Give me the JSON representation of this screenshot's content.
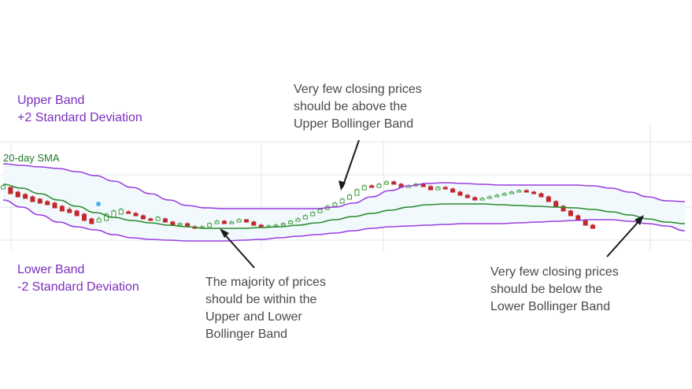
{
  "chart_data": {
    "type": "candlestick",
    "indicator": "Bollinger Bands",
    "labels": {
      "upper_band": [
        "Upper Band",
        "+2 Standard Deviation"
      ],
      "lower_band": [
        "Lower Band",
        "-2 Standard Deviation"
      ],
      "sma": "20-day SMA"
    },
    "annotations": [
      {
        "id": "above",
        "lines": [
          "Very few closing prices",
          "should be above the",
          "Upper Bollinger Band"
        ]
      },
      {
        "id": "within",
        "lines": [
          "The majority of prices",
          "should be within the",
          "Upper and Lower",
          "Bollinger Band"
        ]
      },
      {
        "id": "below",
        "lines": [
          "Very few closing prices",
          "should be below the",
          "Lower Bollinger Band"
        ]
      }
    ],
    "colors": {
      "upper_band": "#9b3fe0",
      "lower_band": "#9b3fe0",
      "sma": "#2b8a2b",
      "band_fill": "#f1f9fc",
      "up_candle": "#3c9a3c",
      "down_candle": "#c0282d",
      "grid": "#dfe6ea",
      "arrow": "#1a1a1a",
      "marker": "#4ab4e6"
    },
    "grid": true,
    "ylim": [
      0,
      100
    ],
    "upper_band": [
      [
        0,
        88
      ],
      [
        5,
        86
      ],
      [
        10,
        84
      ],
      [
        15,
        82
      ],
      [
        20,
        78
      ],
      [
        25,
        73
      ],
      [
        30,
        66
      ],
      [
        35,
        58
      ],
      [
        40,
        50
      ],
      [
        45,
        42
      ],
      [
        50,
        35
      ],
      [
        55,
        32
      ],
      [
        60,
        31
      ],
      [
        65,
        31
      ],
      [
        70,
        31
      ],
      [
        75,
        31
      ],
      [
        80,
        31
      ],
      [
        85,
        31
      ],
      [
        90,
        33
      ],
      [
        95,
        38
      ],
      [
        100,
        46
      ],
      [
        105,
        54
      ],
      [
        110,
        60
      ],
      [
        115,
        63
      ],
      [
        120,
        64
      ],
      [
        125,
        63
      ],
      [
        130,
        62
      ],
      [
        135,
        61
      ],
      [
        140,
        61
      ],
      [
        145,
        61
      ],
      [
        150,
        61
      ],
      [
        155,
        61
      ],
      [
        160,
        60
      ],
      [
        165,
        57
      ],
      [
        170,
        52
      ],
      [
        175,
        46
      ],
      [
        180,
        41
      ],
      [
        185,
        40
      ]
    ],
    "sma": [
      [
        0,
        62
      ],
      [
        5,
        57
      ],
      [
        10,
        50
      ],
      [
        15,
        42
      ],
      [
        20,
        34
      ],
      [
        25,
        26
      ],
      [
        30,
        20
      ],
      [
        35,
        16
      ],
      [
        40,
        13
      ],
      [
        45,
        10
      ],
      [
        50,
        8
      ],
      [
        55,
        6
      ],
      [
        60,
        6
      ],
      [
        65,
        6
      ],
      [
        70,
        7
      ],
      [
        75,
        8
      ],
      [
        80,
        10
      ],
      [
        85,
        13
      ],
      [
        90,
        17
      ],
      [
        95,
        21
      ],
      [
        100,
        25
      ],
      [
        105,
        29
      ],
      [
        110,
        33
      ],
      [
        115,
        36
      ],
      [
        120,
        37
      ],
      [
        125,
        37
      ],
      [
        130,
        37
      ],
      [
        135,
        36
      ],
      [
        140,
        35
      ],
      [
        145,
        34
      ],
      [
        150,
        33
      ],
      [
        155,
        32
      ],
      [
        160,
        30
      ],
      [
        165,
        27
      ],
      [
        170,
        23
      ],
      [
        175,
        18
      ],
      [
        180,
        14
      ],
      [
        185,
        12
      ]
    ],
    "lower_band": [
      [
        0,
        42
      ],
      [
        5,
        33
      ],
      [
        10,
        23
      ],
      [
        15,
        14
      ],
      [
        20,
        8
      ],
      [
        25,
        4
      ],
      [
        30,
        -2
      ],
      [
        35,
        -6
      ],
      [
        40,
        -8
      ],
      [
        45,
        -9
      ],
      [
        50,
        -10
      ],
      [
        55,
        -10
      ],
      [
        60,
        -10
      ],
      [
        65,
        -9
      ],
      [
        70,
        -8
      ],
      [
        75,
        -6
      ],
      [
        80,
        -4
      ],
      [
        85,
        -2
      ],
      [
        90,
        0
      ],
      [
        95,
        3
      ],
      [
        100,
        6
      ],
      [
        105,
        8
      ],
      [
        110,
        9
      ],
      [
        115,
        10
      ],
      [
        120,
        11
      ],
      [
        125,
        12
      ],
      [
        130,
        12
      ],
      [
        135,
        12
      ],
      [
        140,
        13
      ],
      [
        145,
        14
      ],
      [
        150,
        15
      ],
      [
        155,
        16
      ],
      [
        160,
        17
      ],
      [
        165,
        17
      ],
      [
        170,
        15
      ],
      [
        175,
        12
      ],
      [
        180,
        9
      ],
      [
        185,
        3
      ]
    ],
    "candles": [
      [
        0,
        56,
        60,
        58,
        62
      ],
      [
        2,
        58,
        50,
        52,
        59
      ],
      [
        4,
        52,
        46,
        49,
        54
      ],
      [
        6,
        49,
        44,
        46,
        51
      ],
      [
        8,
        46,
        40,
        42,
        48
      ],
      [
        10,
        43,
        38,
        40,
        45
      ],
      [
        12,
        40,
        36,
        38,
        42
      ],
      [
        14,
        38,
        32,
        34,
        40
      ],
      [
        16,
        34,
        28,
        30,
        36
      ],
      [
        18,
        30,
        26,
        28,
        33
      ],
      [
        20,
        28,
        22,
        24,
        30
      ],
      [
        22,
        24,
        16,
        18,
        26
      ],
      [
        24,
        18,
        12,
        14,
        20
      ],
      [
        26,
        14,
        18,
        16,
        21
      ],
      [
        28,
        16,
        24,
        20,
        26
      ],
      [
        30,
        20,
        28,
        24,
        30
      ],
      [
        32,
        24,
        30,
        27,
        32
      ],
      [
        34,
        27,
        25,
        26,
        29
      ],
      [
        36,
        25,
        22,
        24,
        27
      ],
      [
        38,
        22,
        18,
        20,
        24
      ],
      [
        40,
        18,
        16,
        17,
        20
      ],
      [
        42,
        16,
        20,
        18,
        22
      ],
      [
        44,
        18,
        14,
        16,
        20
      ],
      [
        46,
        14,
        10,
        12,
        16
      ],
      [
        48,
        10,
        12,
        11,
        14
      ],
      [
        50,
        12,
        8,
        10,
        14
      ],
      [
        52,
        8,
        6,
        7,
        10
      ],
      [
        54,
        6,
        8,
        7,
        10
      ],
      [
        56,
        8,
        12,
        10,
        14
      ],
      [
        58,
        12,
        15,
        14,
        17
      ],
      [
        60,
        15,
        12,
        13,
        17
      ],
      [
        62,
        12,
        14,
        13,
        16
      ],
      [
        64,
        14,
        17,
        16,
        19
      ],
      [
        66,
        17,
        14,
        15,
        18
      ],
      [
        68,
        14,
        10,
        12,
        16
      ],
      [
        70,
        10,
        8,
        9,
        12
      ],
      [
        72,
        8,
        9,
        8,
        11
      ],
      [
        74,
        9,
        10,
        9,
        12
      ],
      [
        76,
        10,
        12,
        11,
        14
      ],
      [
        78,
        12,
        15,
        14,
        17
      ],
      [
        80,
        15,
        18,
        16,
        20
      ],
      [
        82,
        18,
        22,
        20,
        24
      ],
      [
        84,
        22,
        26,
        24,
        28
      ],
      [
        86,
        26,
        30,
        28,
        32
      ],
      [
        88,
        30,
        34,
        32,
        36
      ],
      [
        90,
        34,
        38,
        36,
        40
      ],
      [
        92,
        38,
        43,
        40,
        45
      ],
      [
        94,
        43,
        48,
        46,
        50
      ],
      [
        96,
        48,
        55,
        52,
        57
      ],
      [
        98,
        55,
        60,
        57,
        62
      ],
      [
        100,
        60,
        58,
        59,
        62
      ],
      [
        102,
        58,
        62,
        60,
        64
      ],
      [
        104,
        62,
        65,
        63,
        67
      ],
      [
        106,
        65,
        62,
        63,
        67
      ],
      [
        108,
        62,
        58,
        60,
        64
      ],
      [
        110,
        58,
        60,
        59,
        62
      ],
      [
        112,
        60,
        62,
        61,
        64
      ],
      [
        114,
        62,
        59,
        60,
        64
      ],
      [
        116,
        59,
        55,
        57,
        61
      ],
      [
        118,
        55,
        58,
        56,
        60
      ],
      [
        120,
        58,
        56,
        57,
        60
      ],
      [
        122,
        56,
        52,
        54,
        58
      ],
      [
        124,
        52,
        48,
        50,
        54
      ],
      [
        126,
        48,
        45,
        46,
        50
      ],
      [
        128,
        45,
        42,
        44,
        47
      ],
      [
        130,
        42,
        44,
        43,
        46
      ],
      [
        132,
        44,
        46,
        45,
        48
      ],
      [
        134,
        46,
        48,
        47,
        50
      ],
      [
        136,
        48,
        50,
        49,
        52
      ],
      [
        138,
        50,
        52,
        51,
        54
      ],
      [
        140,
        52,
        54,
        53,
        56
      ],
      [
        142,
        54,
        52,
        53,
        56
      ],
      [
        144,
        52,
        50,
        51,
        54
      ],
      [
        146,
        50,
        46,
        48,
        52
      ],
      [
        148,
        46,
        40,
        43,
        48
      ],
      [
        150,
        40,
        34,
        37,
        42
      ],
      [
        152,
        34,
        28,
        31,
        36
      ],
      [
        154,
        28,
        22,
        25,
        30
      ],
      [
        156,
        22,
        16,
        19,
        24
      ],
      [
        158,
        16,
        10,
        13,
        18
      ],
      [
        160,
        10,
        6,
        8,
        12
      ]
    ]
  }
}
